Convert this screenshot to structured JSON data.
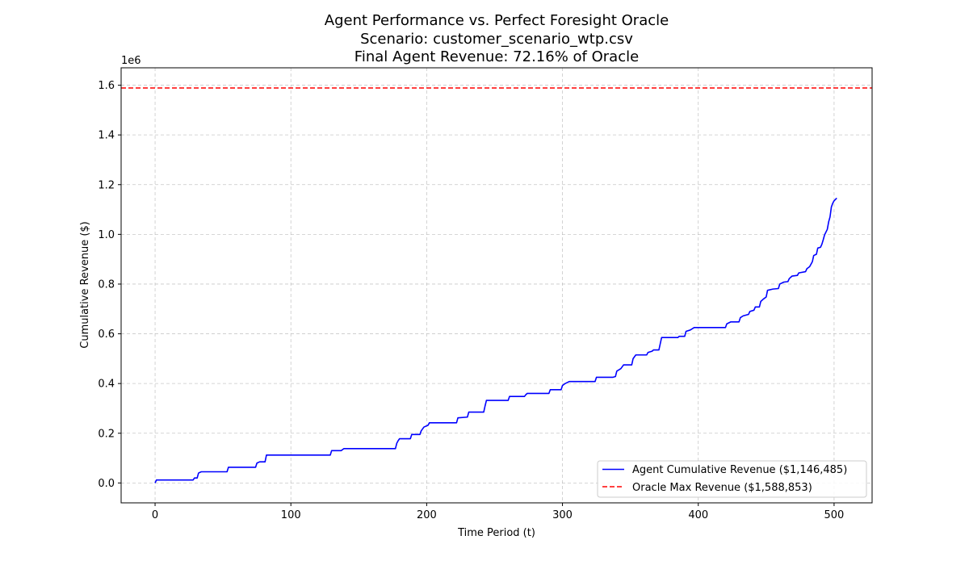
{
  "chart_data": {
    "type": "line",
    "title_lines": [
      "Agent Performance vs. Perfect Foresight Oracle",
      "Scenario: customer_scenario_wtp.csv",
      "Final Agent Revenue: 72.16% of Oracle"
    ],
    "xlabel": "Time Period (t)",
    "ylabel": "Cumulative Revenue ($)",
    "y_offset_label": "1e6",
    "xlim": [
      -25,
      528
    ],
    "ylim": [
      -0.08,
      1.67
    ],
    "x_ticks": [
      0,
      100,
      200,
      300,
      400,
      500
    ],
    "x_tick_labels": [
      "0",
      "100",
      "200",
      "300",
      "400",
      "500"
    ],
    "y_ticks": [
      0.0,
      0.2,
      0.4,
      0.6,
      0.8,
      1.0,
      1.2,
      1.4,
      1.6
    ],
    "y_tick_labels": [
      "0.0",
      "0.2",
      "0.4",
      "0.6",
      "0.8",
      "1.0",
      "1.2",
      "1.4",
      "1.6"
    ],
    "grid": true,
    "legend_position": "lower-right",
    "series": [
      {
        "name": "Agent Cumulative Revenue ($1,146,485)",
        "color": "#0000ff",
        "style": "solid",
        "points": [
          [
            0,
            0.0
          ],
          [
            1,
            0.012
          ],
          [
            28,
            0.012
          ],
          [
            29,
            0.02
          ],
          [
            31,
            0.02
          ],
          [
            32,
            0.04
          ],
          [
            34,
            0.045
          ],
          [
            53,
            0.045
          ],
          [
            54,
            0.063
          ],
          [
            74,
            0.063
          ],
          [
            75,
            0.08
          ],
          [
            77,
            0.085
          ],
          [
            81,
            0.085
          ],
          [
            82,
            0.112
          ],
          [
            129,
            0.112
          ],
          [
            130,
            0.13
          ],
          [
            137,
            0.13
          ],
          [
            139,
            0.138
          ],
          [
            177,
            0.138
          ],
          [
            178,
            0.16
          ],
          [
            179,
            0.17
          ],
          [
            180,
            0.178
          ],
          [
            188,
            0.178
          ],
          [
            189,
            0.195
          ],
          [
            195,
            0.195
          ],
          [
            196,
            0.21
          ],
          [
            198,
            0.225
          ],
          [
            201,
            0.232
          ],
          [
            202,
            0.242
          ],
          [
            222,
            0.242
          ],
          [
            223,
            0.262
          ],
          [
            230,
            0.265
          ],
          [
            231,
            0.285
          ],
          [
            242,
            0.285
          ],
          [
            243,
            0.31
          ],
          [
            244,
            0.332
          ],
          [
            260,
            0.332
          ],
          [
            261,
            0.348
          ],
          [
            272,
            0.348
          ],
          [
            273,
            0.355
          ],
          [
            274,
            0.36
          ],
          [
            290,
            0.36
          ],
          [
            291,
            0.375
          ],
          [
            299,
            0.375
          ],
          [
            300,
            0.392
          ],
          [
            302,
            0.4
          ],
          [
            305,
            0.408
          ],
          [
            324,
            0.408
          ],
          [
            325,
            0.425
          ],
          [
            337,
            0.425
          ],
          [
            339,
            0.428
          ],
          [
            340,
            0.45
          ],
          [
            343,
            0.46
          ],
          [
            345,
            0.475
          ],
          [
            351,
            0.475
          ],
          [
            352,
            0.5
          ],
          [
            354,
            0.515
          ],
          [
            362,
            0.515
          ],
          [
            363,
            0.525
          ],
          [
            366,
            0.53
          ],
          [
            367,
            0.535
          ],
          [
            371,
            0.535
          ],
          [
            372,
            0.56
          ],
          [
            373,
            0.585
          ],
          [
            385,
            0.585
          ],
          [
            386,
            0.59
          ],
          [
            390,
            0.59
          ],
          [
            391,
            0.61
          ],
          [
            394,
            0.615
          ],
          [
            397,
            0.625
          ],
          [
            420,
            0.625
          ],
          [
            421,
            0.64
          ],
          [
            424,
            0.648
          ],
          [
            430,
            0.648
          ],
          [
            431,
            0.665
          ],
          [
            433,
            0.672
          ],
          [
            437,
            0.678
          ],
          [
            438,
            0.69
          ],
          [
            441,
            0.695
          ],
          [
            442,
            0.708
          ],
          [
            445,
            0.708
          ],
          [
            446,
            0.73
          ],
          [
            448,
            0.74
          ],
          [
            450,
            0.748
          ],
          [
            451,
            0.775
          ],
          [
            455,
            0.78
          ],
          [
            459,
            0.782
          ],
          [
            460,
            0.8
          ],
          [
            463,
            0.808
          ],
          [
            466,
            0.81
          ],
          [
            467,
            0.822
          ],
          [
            469,
            0.832
          ],
          [
            473,
            0.835
          ],
          [
            474,
            0.845
          ],
          [
            479,
            0.85
          ],
          [
            480,
            0.862
          ],
          [
            482,
            0.87
          ],
          [
            484,
            0.89
          ],
          [
            485,
            0.915
          ],
          [
            487,
            0.92
          ],
          [
            488,
            0.945
          ],
          [
            490,
            0.948
          ],
          [
            491,
            0.96
          ],
          [
            492,
            0.978
          ],
          [
            493,
            0.998
          ],
          [
            495,
            1.02
          ],
          [
            496,
            1.05
          ],
          [
            497,
            1.07
          ],
          [
            498,
            1.11
          ],
          [
            499,
            1.125
          ],
          [
            500,
            1.135
          ],
          [
            502,
            1.146
          ]
        ]
      },
      {
        "name": "Oracle Max Revenue ($1,588,853)",
        "color": "#ff0000",
        "style": "dashed",
        "hline": 1.588853
      }
    ]
  }
}
